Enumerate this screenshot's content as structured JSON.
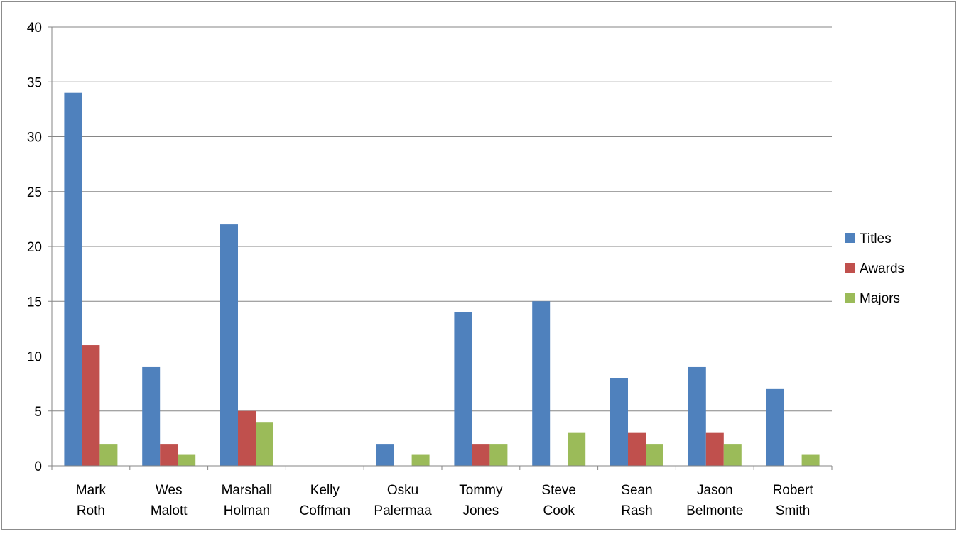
{
  "chart_data": {
    "type": "bar",
    "title": "",
    "xlabel": "",
    "ylabel": "",
    "categories": [
      [
        "Mark",
        "Roth"
      ],
      [
        "Wes",
        "Malott"
      ],
      [
        "Marshall",
        "Holman"
      ],
      [
        "Kelly",
        "Coffman"
      ],
      [
        "Osku",
        "Palermaa"
      ],
      [
        "Tommy",
        "Jones"
      ],
      [
        "Steve",
        "Cook"
      ],
      [
        "Sean",
        "Rash"
      ],
      [
        "Jason",
        "Belmonte"
      ],
      [
        "Robert",
        "Smith"
      ]
    ],
    "series": [
      {
        "name": "Titles",
        "color": "#4f81bd",
        "values": [
          34,
          9,
          22,
          0,
          2,
          14,
          15,
          8,
          9,
          7
        ]
      },
      {
        "name": "Awards",
        "color": "#c0504d",
        "values": [
          11,
          2,
          5,
          0,
          0,
          2,
          0,
          3,
          3,
          0
        ]
      },
      {
        "name": "Majors",
        "color": "#9bbb59",
        "values": [
          2,
          1,
          4,
          0,
          1,
          2,
          3,
          2,
          2,
          1
        ]
      }
    ],
    "ylim": [
      0,
      40
    ],
    "yticks": [
      0,
      5,
      10,
      15,
      20,
      25,
      30,
      35,
      40
    ],
    "grid": true,
    "legend": "right"
  }
}
